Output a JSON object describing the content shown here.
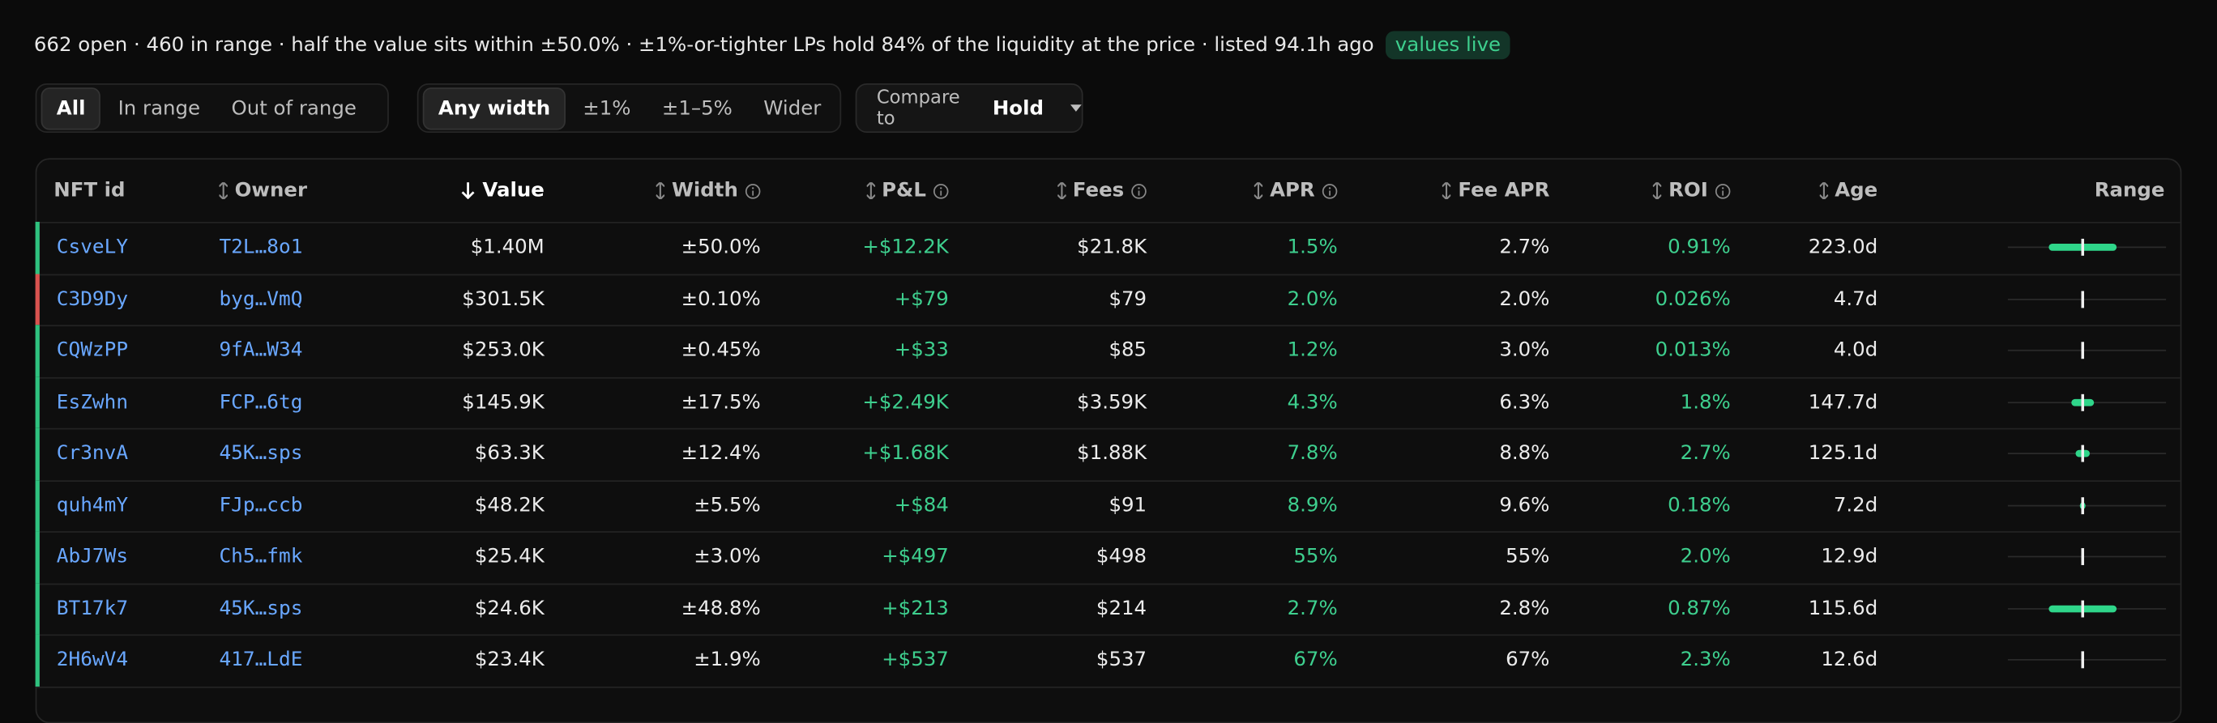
{
  "summary": {
    "text": "662 open · 460 in range · half the value sits within ±50.0% · ±1%-or-tighter LPs hold 84% of the liquidity at the price · listed 94.1h ago",
    "badge": "values live"
  },
  "filters": {
    "status": [
      "All",
      "In range",
      "Out of range"
    ],
    "width": [
      "Any width",
      "±1%",
      "±1–5%",
      "Wider"
    ],
    "compare_label": "Compare to",
    "compare_value": "Hold"
  },
  "table": {
    "columns": [
      "NFT id",
      "Owner",
      "Value",
      "Width",
      "P&L",
      "Fees",
      "APR",
      "Fee APR",
      "ROI",
      "Age",
      "Range"
    ],
    "rows": [
      {
        "accent": "#2fc27f",
        "cells": [
          "CsveLY",
          "T2L…8o1",
          "$1.40M",
          "±50.0%",
          "+$12.2K",
          "$21.8K",
          "1.5%",
          "2.7%",
          "0.91%",
          "223.0d"
        ]
      },
      {
        "accent": "#d9534f",
        "cells": [
          "C3D9Dy",
          "byg…VmQ",
          "$301.5K",
          "±0.10%",
          "+$79",
          "$79",
          "2.0%",
          "2.0%",
          "0.026%",
          "4.7d"
        ]
      },
      {
        "accent": "#2fc27f",
        "cells": [
          "CQWzPP",
          "9fA…W34",
          "$253.0K",
          "±0.45%",
          "+$33",
          "$85",
          "1.2%",
          "3.0%",
          "0.013%",
          "4.0d"
        ]
      },
      {
        "accent": "#2fc27f",
        "cells": [
          "EsZwhn",
          "FCP…6tg",
          "$145.9K",
          "±17.5%",
          "+$2.49K",
          "$3.59K",
          "4.3%",
          "6.3%",
          "1.8%",
          "147.7d"
        ]
      },
      {
        "accent": "#2fc27f",
        "cells": [
          "Cr3nvA",
          "45K…sps",
          "$63.3K",
          "±12.4%",
          "+$1.68K",
          "$1.88K",
          "7.8%",
          "8.8%",
          "2.7%",
          "125.1d"
        ]
      },
      {
        "accent": "#2fc27f",
        "cells": [
          "quh4mY",
          "FJp…ccb",
          "$48.2K",
          "±5.5%",
          "+$84",
          "$91",
          "8.9%",
          "9.6%",
          "0.18%",
          "7.2d"
        ]
      },
      {
        "accent": "#2fc27f",
        "cells": [
          "AbJ7Ws",
          "Ch5…fmk",
          "$25.4K",
          "±3.0%",
          "+$497",
          "$498",
          "55%",
          "55%",
          "2.0%",
          "12.9d"
        ]
      },
      {
        "accent": "#2fc27f",
        "cells": [
          "BT17k7",
          "45K…sps",
          "$24.6K",
          "±48.8%",
          "+$213",
          "$214",
          "2.7%",
          "2.8%",
          "0.87%",
          "115.6d"
        ]
      },
      {
        "accent": "#2fc27f",
        "cells": [
          "2H6wV4",
          "417…LdE",
          "$23.4K",
          "±1.9%",
          "+$537",
          "$537",
          "67%",
          "67%",
          "2.3%",
          "12.6d"
        ]
      }
    ]
  }
}
